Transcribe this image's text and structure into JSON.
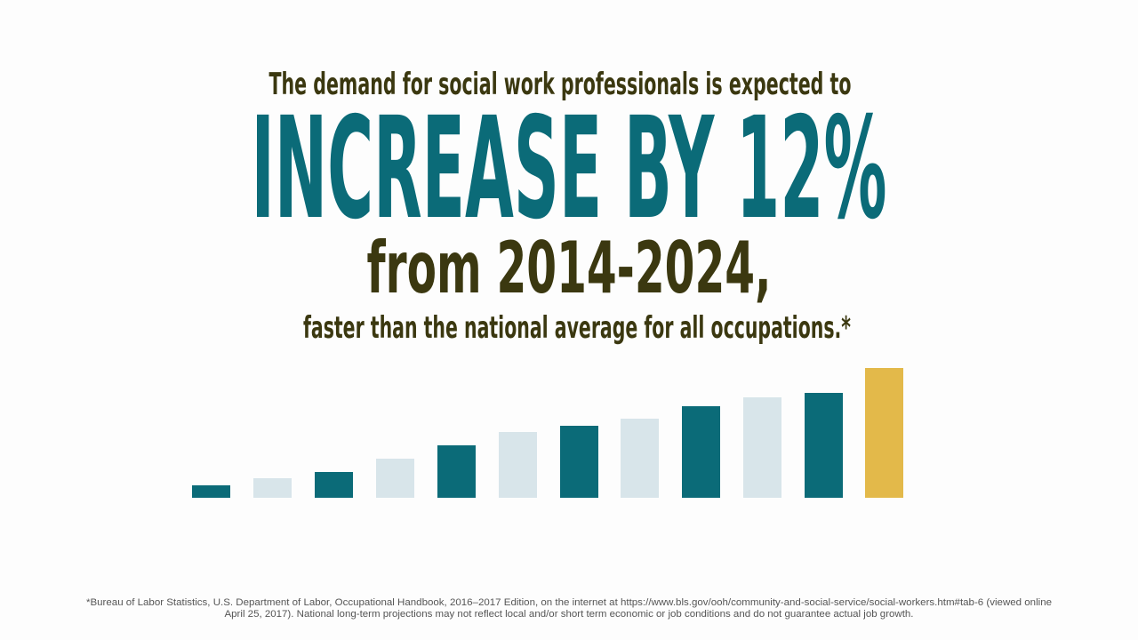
{
  "headline": {
    "intro": "The demand for social work professionals is expected to",
    "emphasis": "INCREASE BY 12%",
    "period": "from 2014-2024,",
    "comparison": "faster than the national average for all occupations.*"
  },
  "footnote": {
    "lines": [
      "*Bureau of Labor Statistics, U.S. Department of Labor, Occupational Handbook, 2016–2017 Edition, on the internet at https://www.bls.gov/ooh/community-and-social-service/social-workers.htm#tab-6 (viewed online",
      "April 25, 2017). National long-term projections may not reflect local and/or short term economic or job conditions and do not guarantee actual job growth."
    ]
  }
}
